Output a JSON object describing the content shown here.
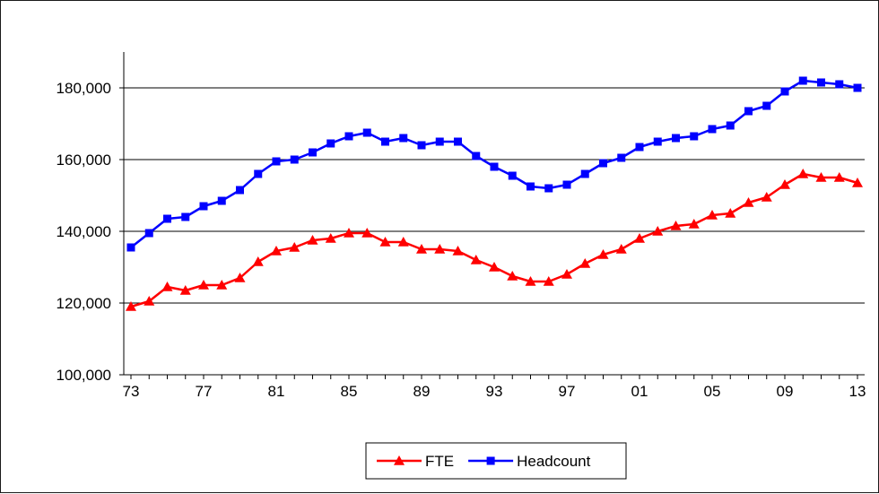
{
  "chart_data": {
    "type": "line",
    "title": "",
    "xlabel": "",
    "ylabel": "",
    "ylim": [
      100000,
      190000
    ],
    "yticks": [
      100000,
      120000,
      140000,
      160000,
      180000
    ],
    "ytick_labels": [
      "100,000",
      "120,000",
      "140,000",
      "160,000",
      "180,000"
    ],
    "x": [
      1973,
      1974,
      1975,
      1976,
      1977,
      1978,
      1979,
      1980,
      1981,
      1982,
      1983,
      1984,
      1985,
      1986,
      1987,
      1988,
      1989,
      1990,
      1991,
      1992,
      1993,
      1994,
      1995,
      1996,
      1997,
      1998,
      1999,
      2000,
      2001,
      2002,
      2003,
      2004,
      2005,
      2006,
      2007,
      2008,
      2009,
      2010,
      2011,
      2012,
      2013
    ],
    "xticks": [
      1973,
      1977,
      1981,
      1985,
      1989,
      1993,
      1997,
      2001,
      2005,
      2009,
      2013
    ],
    "xtick_labels": [
      "73",
      "77",
      "81",
      "85",
      "89",
      "93",
      "97",
      "01",
      "05",
      "09",
      "13"
    ],
    "grid": "horizontal",
    "legend_position": "bottom",
    "series": [
      {
        "name": "FTE",
        "color": "#ff0000",
        "marker": "triangle",
        "values": [
          119000,
          120500,
          124500,
          123500,
          125000,
          125000,
          127000,
          131500,
          134500,
          135500,
          137500,
          138000,
          139500,
          139500,
          137000,
          137000,
          135000,
          135000,
          134500,
          132000,
          130000,
          127500,
          126000,
          126000,
          128000,
          131000,
          133500,
          135000,
          138000,
          140000,
          141500,
          142000,
          144500,
          145000,
          148000,
          149500,
          153000,
          156000,
          155000,
          155000,
          153500
        ]
      },
      {
        "name": "Headcount",
        "color": "#0000ff",
        "marker": "square",
        "values": [
          135500,
          139500,
          143500,
          144000,
          147000,
          148500,
          151500,
          156000,
          159500,
          160000,
          162000,
          164500,
          166500,
          167500,
          165000,
          166000,
          164000,
          165000,
          165000,
          161000,
          158000,
          155500,
          152500,
          152000,
          153000,
          156000,
          159000,
          160500,
          163500,
          165000,
          166000,
          166500,
          168500,
          169500,
          173500,
          175000,
          179000,
          182000,
          181500,
          181000,
          180000
        ]
      }
    ]
  }
}
